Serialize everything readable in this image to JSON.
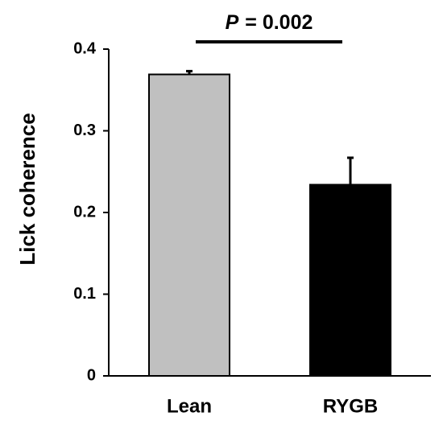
{
  "chart_data": {
    "type": "bar",
    "ylabel": "Lick coherence",
    "categories": [
      "Lean",
      "RYGB"
    ],
    "values": [
      0.369,
      0.234
    ],
    "errors": [
      0.004,
      0.033
    ],
    "colors": [
      "#c0c0c0",
      "#000000"
    ],
    "ylim": [
      0,
      0.4
    ],
    "yticks": [
      {
        "value": 0,
        "label": "0"
      },
      0.1,
      0.2,
      0.3,
      0.4
    ],
    "annotation": {
      "italic": "P",
      "text": "= 0.002"
    }
  }
}
